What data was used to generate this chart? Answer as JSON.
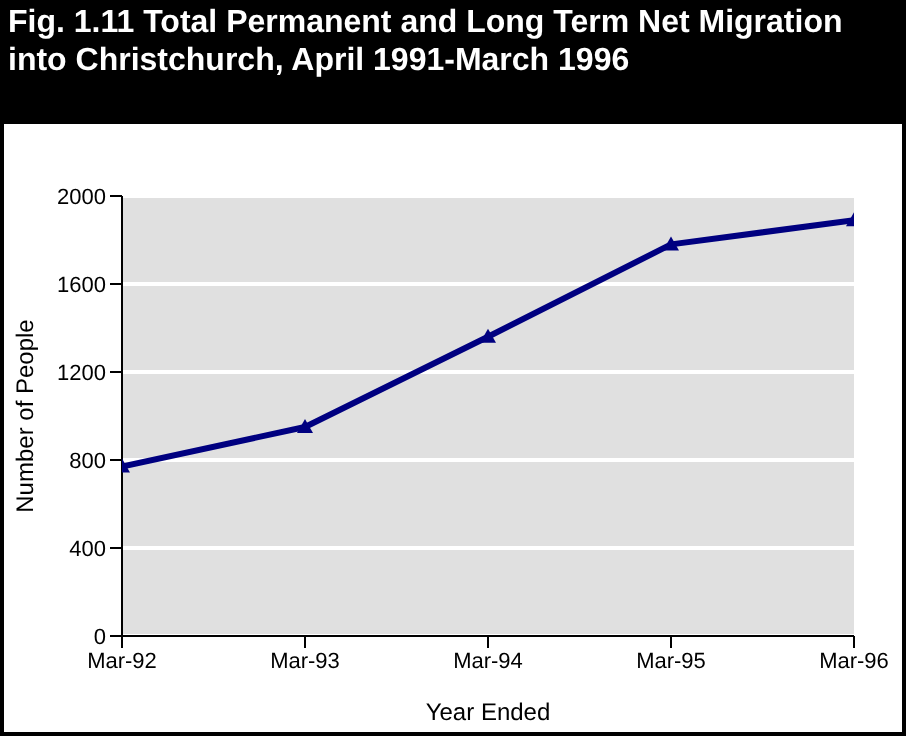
{
  "chart_data": {
    "type": "line",
    "title": "Fig. 1.11 Total Permanent and Long Term Net Migration into Christchurch, April 1991-March 1996",
    "xlabel": "Year Ended",
    "ylabel": "Number of People",
    "categories": [
      "Mar-92",
      "Mar-93",
      "Mar-94",
      "Mar-95",
      "Mar-96"
    ],
    "series": [
      {
        "color": "#000080",
        "values": [
          770,
          950,
          1360,
          1780,
          1890
        ]
      }
    ],
    "ylim": [
      0,
      2000
    ],
    "yticks": [
      0,
      400,
      800,
      1200,
      1600,
      2000
    ],
    "grid": "y",
    "marker": "triangle"
  }
}
